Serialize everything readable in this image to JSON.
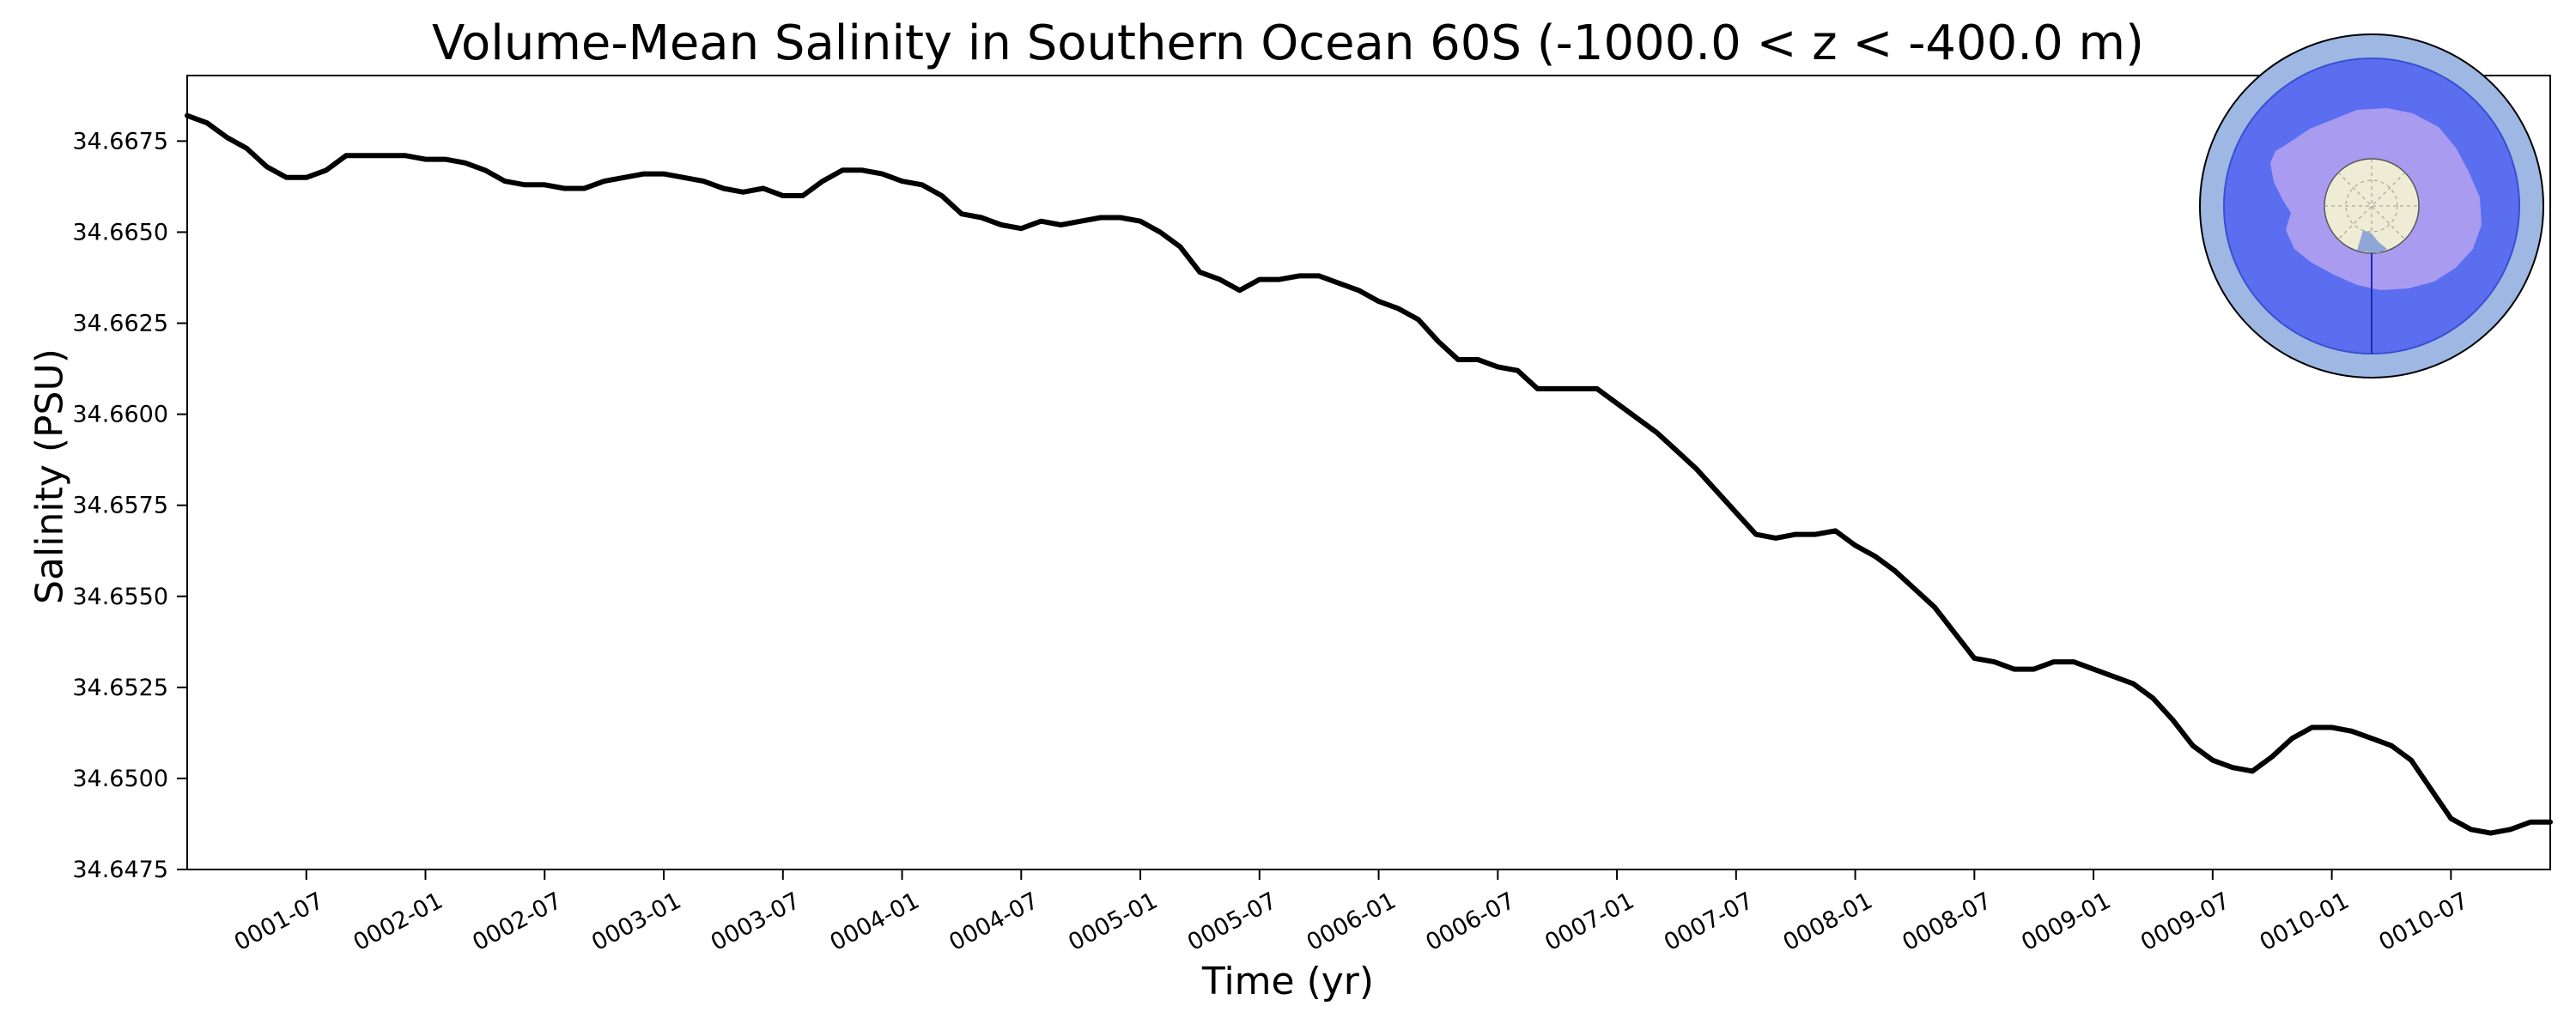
{
  "chart_data": {
    "type": "line",
    "title": "Volume-Mean Salinity in Southern Ocean 60S (-1000.0 < z < -400.0 m)",
    "xlabel": "Time (yr)",
    "ylabel": "Salinity (PSU)",
    "x_tick_labels": [
      "0001-07",
      "0002-01",
      "0002-07",
      "0003-01",
      "0003-07",
      "0004-01",
      "0004-07",
      "0005-01",
      "0005-07",
      "0006-01",
      "0006-07",
      "0007-01",
      "0007-07",
      "0008-01",
      "0008-07",
      "0009-01",
      "0009-07",
      "0010-01",
      "0010-07"
    ],
    "y_tick_labels": [
      "34.6475",
      "34.6500",
      "34.6525",
      "34.6550",
      "34.6575",
      "34.6600",
      "34.6625",
      "34.6650",
      "34.6675"
    ],
    "y_ticks": [
      34.6475,
      34.65,
      34.6525,
      34.655,
      34.6575,
      34.66,
      34.6625,
      34.665,
      34.6675
    ],
    "ylim": [
      34.6475,
      34.6693
    ],
    "xlim_months": [
      0.0,
      119.0
    ],
    "grid": false,
    "series": [
      {
        "color": "#000000",
        "x_months": [
          0,
          1,
          2,
          3,
          4,
          5,
          6,
          7,
          8,
          9,
          10,
          11,
          12,
          13,
          14,
          15,
          16,
          17,
          18,
          19,
          20,
          21,
          22,
          23,
          24,
          25,
          26,
          27,
          28,
          29,
          30,
          31,
          32,
          33,
          34,
          35,
          36,
          37,
          38,
          39,
          40,
          41,
          42,
          43,
          44,
          45,
          46,
          47,
          48,
          49,
          50,
          51,
          52,
          53,
          54,
          55,
          56,
          57,
          58,
          59,
          60,
          61,
          62,
          63,
          64,
          65,
          66,
          67,
          68,
          69,
          70,
          71,
          72,
          73,
          74,
          75,
          76,
          77,
          78,
          79,
          80,
          81,
          82,
          83,
          84,
          85,
          86,
          87,
          88,
          89,
          90,
          91,
          92,
          93,
          94,
          95,
          96,
          97,
          98,
          99,
          100,
          101,
          102,
          103,
          104,
          105,
          106,
          107,
          108,
          109,
          110,
          111,
          112,
          113,
          114,
          115,
          116,
          117,
          118,
          119
        ],
        "values": [
          34.6682,
          34.668,
          34.6676,
          34.6673,
          34.6668,
          34.6665,
          34.6665,
          34.6667,
          34.6671,
          34.6671,
          34.6671,
          34.6671,
          34.667,
          34.667,
          34.6669,
          34.6667,
          34.6664,
          34.6663,
          34.6663,
          34.6662,
          34.6662,
          34.6664,
          34.6665,
          34.6666,
          34.6666,
          34.6665,
          34.6664,
          34.6662,
          34.6661,
          34.6662,
          34.666,
          34.666,
          34.6664,
          34.6667,
          34.6667,
          34.6666,
          34.6664,
          34.6663,
          34.666,
          34.6655,
          34.6654,
          34.6652,
          34.6651,
          34.6653,
          34.6652,
          34.6653,
          34.6654,
          34.6654,
          34.6653,
          34.665,
          34.6646,
          34.6639,
          34.6637,
          34.6634,
          34.6637,
          34.6637,
          34.6638,
          34.6638,
          34.6636,
          34.6634,
          34.6631,
          34.6629,
          34.6626,
          34.662,
          34.6615,
          34.6615,
          34.6613,
          34.6612,
          34.6607,
          34.6607,
          34.6607,
          34.6607,
          34.6603,
          34.6599,
          34.6595,
          34.659,
          34.6585,
          34.6579,
          34.6573,
          34.6567,
          34.6566,
          34.6567,
          34.6567,
          34.6568,
          34.6564,
          34.6561,
          34.6557,
          34.6552,
          34.6547,
          34.654,
          34.6533,
          34.6532,
          34.653,
          34.653,
          34.6532,
          34.6532,
          34.653,
          34.6528,
          34.6526,
          34.6522,
          34.6516,
          34.6509,
          34.6505,
          34.6503,
          34.6502,
          34.6506,
          34.6511,
          34.6514,
          34.6514,
          34.6513,
          34.6511,
          34.6509,
          34.6505,
          34.6497,
          34.6489,
          34.6486,
          34.6485,
          34.6486,
          34.6488,
          34.6488
        ]
      }
    ]
  },
  "inset_map": {
    "ocean_outer_color": "#9fb8e3",
    "ocean_inner_color": "#5b6ef0",
    "land_color": "#a99cf0",
    "pole_color": "#efecd6"
  }
}
